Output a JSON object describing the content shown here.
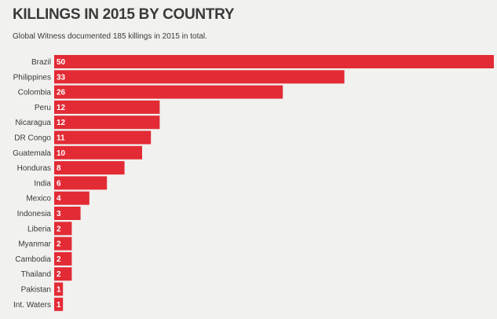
{
  "chart_data": {
    "type": "bar",
    "orientation": "horizontal",
    "title": "KILLINGS IN 2015 BY COUNTRY",
    "subtitle": "Global Witness documented 185 killings in 2015 in total.",
    "categories": [
      "Brazil",
      "Philippines",
      "Colombia",
      "Peru",
      "Nicaragua",
      "DR Congo",
      "Guatemala",
      "Honduras",
      "India",
      "Mexico",
      "Indonesia",
      "Liberia",
      "Myanmar",
      "Cambodia",
      "Thailand",
      "Pakistan",
      "Int. Waters"
    ],
    "values": [
      50,
      33,
      26,
      12,
      12,
      11,
      10,
      8,
      6,
      4,
      3,
      2,
      2,
      2,
      2,
      1,
      1
    ],
    "xlim": [
      0,
      50
    ],
    "grid": false,
    "bar_color": "#e32b35"
  }
}
